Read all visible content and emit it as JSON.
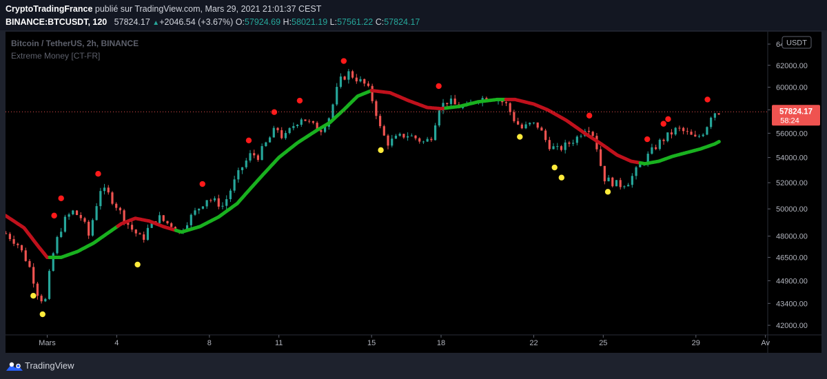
{
  "header": {
    "author": "CryptoTradingFrance",
    "published_text": "publié sur TradingView.com, Mars 29, 2021 21:01:37 CEST",
    "symbol": "BINANCE:BTCUSDT, 120",
    "last_price": "57824.17",
    "change": "+2046.54 (+3.67%)",
    "o_label": "O:",
    "o_value": "57924.69",
    "h_label": "H:",
    "h_value": "58021.19",
    "l_label": "L:",
    "l_value": "57561.22",
    "c_label": "C:",
    "c_value": "57824.17"
  },
  "legend": {
    "pair_title": "Bitcoin / TetherUS, 2h, BINANCE",
    "indicator": "Extreme Money [CT-FR]"
  },
  "price_axis": {
    "currency_badge": "USDT",
    "price_label": "57824.17",
    "countdown": "58:24"
  },
  "colors": {
    "up": "#26a69a",
    "down": "#ef5350",
    "bg": "#000000",
    "ma_bull": "#19b11f",
    "ma_bear": "#c0111c",
    "signal_top": "#ff1a1a",
    "signal_bottom": "#ffeb3b"
  },
  "footer": {
    "brand": "TradingView"
  },
  "chart_data": {
    "type": "candlestick",
    "series_name": "BINANCE:BTCUSDT, 120",
    "x_ticks": [
      {
        "day": 1,
        "label": "Mars"
      },
      {
        "day": 4,
        "label": "4"
      },
      {
        "day": 8,
        "label": "8"
      },
      {
        "day": 11,
        "label": "11"
      },
      {
        "day": 15,
        "label": "15"
      },
      {
        "day": 18,
        "label": "18"
      },
      {
        "day": 22,
        "label": "22"
      },
      {
        "day": 25,
        "label": "25"
      },
      {
        "day": 29,
        "label": "29"
      },
      {
        "day": 32,
        "label": "Av"
      }
    ],
    "x_range_days": [
      -0.8,
      32.1
    ],
    "y_ticks": [
      42000,
      43400,
      44900,
      46500,
      48000,
      50000,
      52000,
      54000,
      56000,
      58000,
      60000,
      62000,
      64000
    ],
    "y_tick_labels": [
      "42000.00",
      "43400.00",
      "44900.00",
      "46500.00",
      "48000.00",
      "50000.00",
      "52000.00",
      "54000.00",
      "56000.00",
      "58000.00",
      "60000.00",
      "62000.00",
      "64000.00"
    ],
    "y_scale": "log",
    "y_range": [
      41400,
      65200
    ],
    "price_path": [
      [
        -0.8,
        48200
      ],
      [
        -0.3,
        47500
      ],
      [
        0.2,
        46000
      ],
      [
        0.6,
        44000
      ],
      [
        0.9,
        43400
      ],
      [
        1.2,
        46400
      ],
      [
        1.5,
        48200
      ],
      [
        1.8,
        49300
      ],
      [
        2.1,
        49800
      ],
      [
        2.5,
        49300
      ],
      [
        2.8,
        48000
      ],
      [
        3.0,
        49500
      ],
      [
        3.3,
        51500
      ],
      [
        3.6,
        51200
      ],
      [
        4.0,
        50200
      ],
      [
        4.3,
        49300
      ],
      [
        4.6,
        48600
      ],
      [
        4.9,
        48100
      ],
      [
        5.1,
        47700
      ],
      [
        5.4,
        48700
      ],
      [
        5.8,
        49400
      ],
      [
        6.1,
        49000
      ],
      [
        6.4,
        48800
      ],
      [
        6.7,
        48200
      ],
      [
        7.0,
        49000
      ],
      [
        7.5,
        50000
      ],
      [
        7.9,
        50800
      ],
      [
        8.3,
        50500
      ],
      [
        8.6,
        50200
      ],
      [
        9.0,
        51800
      ],
      [
        9.4,
        53200
      ],
      [
        9.8,
        54300
      ],
      [
        10.1,
        54100
      ],
      [
        10.5,
        55300
      ],
      [
        10.9,
        56500
      ],
      [
        11.2,
        55500
      ],
      [
        11.6,
        56600
      ],
      [
        12.0,
        57400
      ],
      [
        12.4,
        56700
      ],
      [
        12.8,
        56300
      ],
      [
        13.2,
        57500
      ],
      [
        13.6,
        60500
      ],
      [
        14.0,
        61300
      ],
      [
        14.4,
        60700
      ],
      [
        14.8,
        60100
      ],
      [
        15.1,
        58500
      ],
      [
        15.4,
        56200
      ],
      [
        15.7,
        55200
      ],
      [
        16.1,
        55600
      ],
      [
        16.5,
        55900
      ],
      [
        16.9,
        55600
      ],
      [
        17.3,
        55200
      ],
      [
        17.6,
        55800
      ],
      [
        17.9,
        58200
      ],
      [
        18.3,
        58800
      ],
      [
        18.7,
        58300
      ],
      [
        19.1,
        58200
      ],
      [
        19.5,
        58900
      ],
      [
        20.0,
        59100
      ],
      [
        20.4,
        59000
      ],
      [
        20.8,
        58500
      ],
      [
        21.2,
        57000
      ],
      [
        21.5,
        56400
      ],
      [
        21.9,
        56800
      ],
      [
        22.2,
        56600
      ],
      [
        22.6,
        55100
      ],
      [
        23.0,
        54600
      ],
      [
        23.4,
        55000
      ],
      [
        23.9,
        55700
      ],
      [
        24.3,
        56700
      ],
      [
        24.6,
        55800
      ],
      [
        24.8,
        54200
      ],
      [
        25.0,
        52400
      ],
      [
        25.3,
        52100
      ],
      [
        25.7,
        51800
      ],
      [
        26.1,
        52100
      ],
      [
        26.6,
        53400
      ],
      [
        27.0,
        54300
      ],
      [
        27.4,
        55200
      ],
      [
        27.8,
        55800
      ],
      [
        28.2,
        56400
      ],
      [
        28.6,
        56000
      ],
      [
        29.0,
        55500
      ],
      [
        29.4,
        56300
      ],
      [
        29.7,
        57800
      ],
      [
        30.0,
        57824
      ]
    ],
    "moving_average": [
      [
        -0.8,
        49500
      ],
      [
        0.0,
        48600
      ],
      [
        0.6,
        47300
      ],
      [
        1.0,
        46500
      ],
      [
        1.6,
        46500
      ],
      [
        2.3,
        46900
      ],
      [
        3.0,
        47500
      ],
      [
        3.6,
        48200
      ],
      [
        4.2,
        48900
      ],
      [
        4.8,
        49300
      ],
      [
        5.4,
        49100
      ],
      [
        6.0,
        48700
      ],
      [
        6.8,
        48300
      ],
      [
        7.6,
        48700
      ],
      [
        8.4,
        49400
      ],
      [
        9.2,
        50400
      ],
      [
        9.8,
        51600
      ],
      [
        10.4,
        52800
      ],
      [
        11.0,
        54000
      ],
      [
        11.8,
        55200
      ],
      [
        12.6,
        56200
      ],
      [
        13.2,
        56900
      ],
      [
        13.8,
        58000
      ],
      [
        14.4,
        59200
      ],
      [
        15.0,
        59700
      ],
      [
        15.8,
        59500
      ],
      [
        16.6,
        58800
      ],
      [
        17.4,
        58200
      ],
      [
        18.0,
        58100
      ],
      [
        18.8,
        58300
      ],
      [
        19.6,
        58700
      ],
      [
        20.4,
        58900
      ],
      [
        21.2,
        58900
      ],
      [
        22.0,
        58500
      ],
      [
        22.6,
        58000
      ],
      [
        23.4,
        57100
      ],
      [
        24.2,
        56000
      ],
      [
        25.0,
        55000
      ],
      [
        25.6,
        54200
      ],
      [
        26.2,
        53700
      ],
      [
        26.8,
        53500
      ],
      [
        27.4,
        53700
      ],
      [
        28.0,
        54100
      ],
      [
        28.6,
        54400
      ],
      [
        29.2,
        54700
      ],
      [
        29.8,
        55100
      ],
      [
        30.0,
        55300
      ]
    ],
    "ma_regime_changes": [
      {
        "day": 1.1,
        "from": "bear",
        "to": "bull"
      },
      {
        "day": 4.0,
        "from": "bull",
        "to": "bear"
      },
      {
        "day": 6.5,
        "from": "bear",
        "to": "bull"
      },
      {
        "day": 15.0,
        "from": "bull",
        "to": "bear"
      },
      {
        "day": 18.2,
        "from": "bear",
        "to": "bull"
      },
      {
        "day": 20.8,
        "from": "bull",
        "to": "bear"
      },
      {
        "day": 26.6,
        "from": "bear",
        "to": "bull"
      }
    ],
    "ma_initial_regime": "bear",
    "signals_top": [
      [
        1.3,
        49500
      ],
      [
        1.6,
        50800
      ],
      [
        3.2,
        52700
      ],
      [
        7.7,
        51900
      ],
      [
        9.7,
        55400
      ],
      [
        10.8,
        57800
      ],
      [
        11.9,
        58800
      ],
      [
        13.8,
        62400
      ],
      [
        17.9,
        60100
      ],
      [
        24.4,
        57500
      ],
      [
        26.9,
        55500
      ],
      [
        27.6,
        56800
      ],
      [
        27.8,
        57200
      ],
      [
        29.5,
        58900
      ]
    ],
    "signals_bottom": [
      [
        0.4,
        43900
      ],
      [
        0.8,
        42700
      ],
      [
        4.9,
        46000
      ],
      [
        15.4,
        54600
      ],
      [
        21.4,
        55700
      ],
      [
        22.9,
        53200
      ],
      [
        23.2,
        52400
      ],
      [
        25.2,
        51300
      ]
    ],
    "last_price": 57824.17
  }
}
